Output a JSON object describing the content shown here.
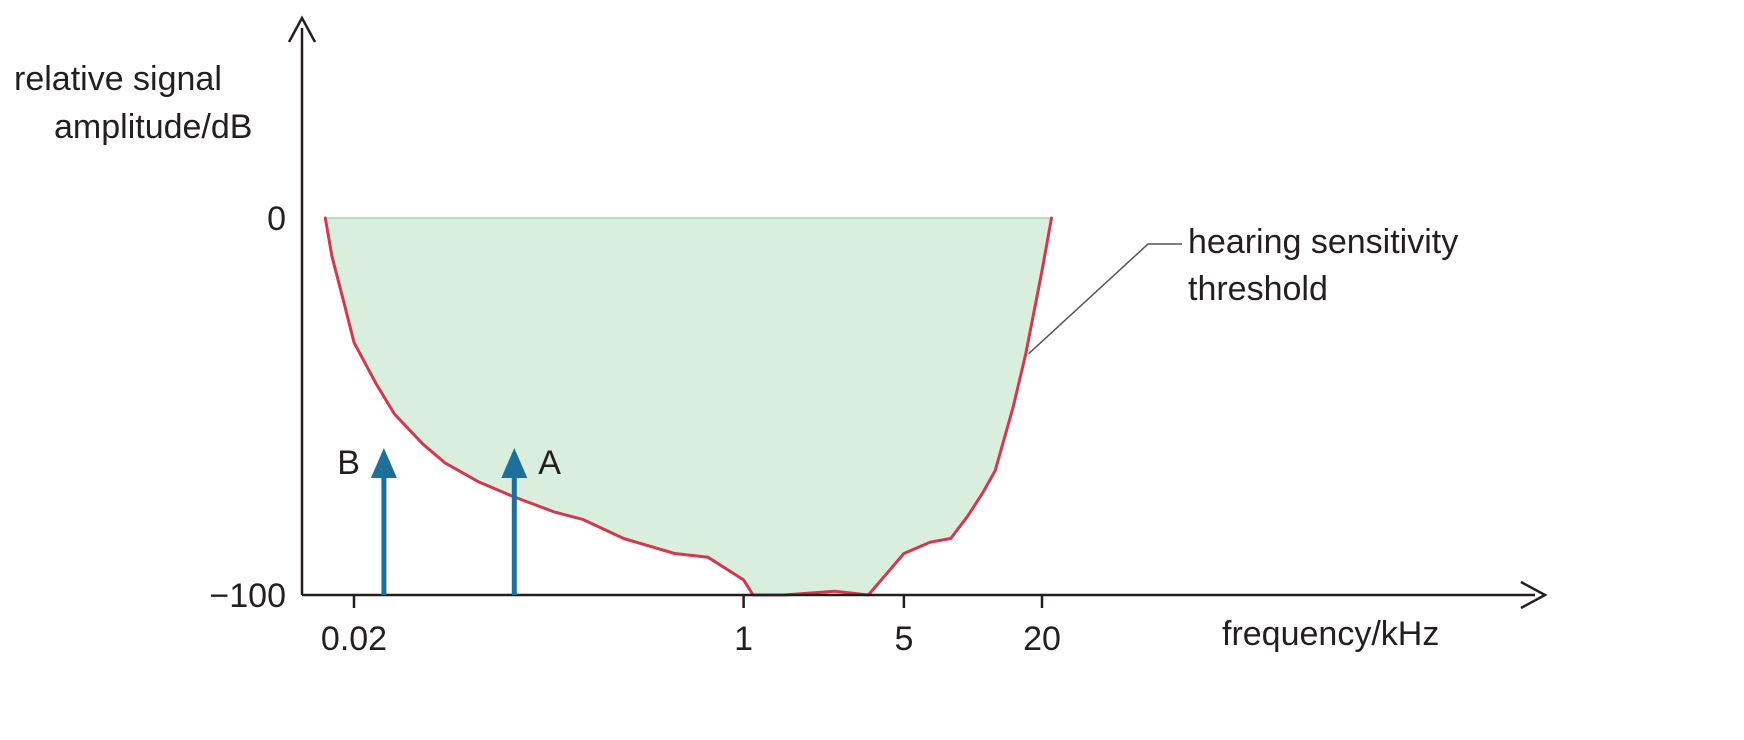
{
  "chart_data": {
    "type": "area",
    "title": "",
    "ylabel_lines": [
      "relative signal",
      "amplitude/dB"
    ],
    "xlabel": "frequency/kHz",
    "ylim": [
      -100,
      0
    ],
    "x_scale": "log",
    "grid": false,
    "y_ticks": [
      {
        "value": 0,
        "label": "0"
      },
      {
        "value": -100,
        "label": "−100"
      }
    ],
    "x_ticks": [
      {
        "value": 0.02,
        "label": "0.02"
      },
      {
        "value": 1,
        "label": "1"
      },
      {
        "value": 5,
        "label": "5"
      },
      {
        "value": 20,
        "label": "20"
      }
    ],
    "series": [
      {
        "annotation_lines": [
          "hearing sensitivity",
          "threshold"
        ],
        "color": "#d2394f",
        "fill_color": "#d9eedc",
        "x": [
          0.015,
          0.016,
          0.018,
          0.02,
          0.025,
          0.03,
          0.04,
          0.05,
          0.07,
          0.1,
          0.15,
          0.2,
          0.3,
          0.5,
          0.7,
          1.0,
          1.1,
          1.5,
          2.5,
          3.5,
          5,
          6.5,
          8,
          9.5,
          11,
          12.5,
          15,
          17,
          20,
          22
        ],
        "y": [
          0,
          -10,
          -22,
          -33,
          -44,
          -52,
          -60,
          -65,
          -70,
          -74,
          -78,
          -80,
          -85,
          -89,
          -90,
          -96,
          -100,
          -100,
          -99,
          -100,
          -89,
          -86,
          -85,
          -79,
          -73,
          -67,
          -50,
          -36,
          -14,
          0
        ]
      }
    ],
    "annotations": [
      {
        "label": "B",
        "x": 0.027,
        "y_from": -100,
        "y_to": -61,
        "label_side": "left"
      },
      {
        "label": "A",
        "x": 0.1,
        "y_from": -100,
        "y_to": -61,
        "label_side": "right"
      }
    ],
    "colors": {
      "axis": "#231f20",
      "arrow": "#1f6f9c",
      "leader": "#555555"
    }
  }
}
